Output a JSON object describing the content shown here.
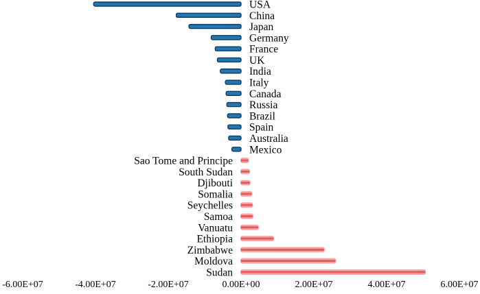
{
  "chart_data": {
    "type": "bar",
    "orientation": "horizontal",
    "categories": [
      "USA",
      "China",
      "Japan",
      "Germany",
      "France",
      "UK",
      "India",
      "Italy",
      "Canada",
      "Russia",
      "Brazil",
      "Spain",
      "Australia",
      "Mexico",
      "Sao Tome and Principe",
      "South Sudan",
      "Djibouti",
      "Somalia",
      "Seychelles",
      "Samoa",
      "Vanuatu",
      "Ethiopia",
      "Zimbabwe",
      "Moldova",
      "Sudan"
    ],
    "values": [
      -40500000,
      -17800000,
      -14300000,
      -8200000,
      -7100000,
      -6500000,
      -5700000,
      -4300000,
      -4100000,
      -3900000,
      -3700000,
      -3600000,
      -3400000,
      -2500000,
      2000000,
      2300000,
      2400000,
      2900000,
      3100000,
      3200000,
      4700000,
      8900000,
      22800000,
      25900000,
      50600000
    ],
    "colors": {
      "negative": "#1f77b4",
      "negative_outline": "#16395a",
      "positive": "#f5a8a8",
      "positive_inner": "#e55b5b"
    },
    "xlim": [
      -60000000,
      60000000
    ],
    "xticks": [
      -60000000,
      -40000000,
      -20000000,
      0,
      20000000,
      40000000,
      60000000
    ],
    "xtick_labels": [
      "-6.00E+07",
      "-4.00E+07",
      "-2.00E+07",
      "0.00E+00",
      "2.00E+07",
      "4.00E+07",
      "6.00E+07"
    ],
    "title": "",
    "xlabel": "",
    "ylabel": "",
    "grid": false,
    "legend": "none"
  }
}
